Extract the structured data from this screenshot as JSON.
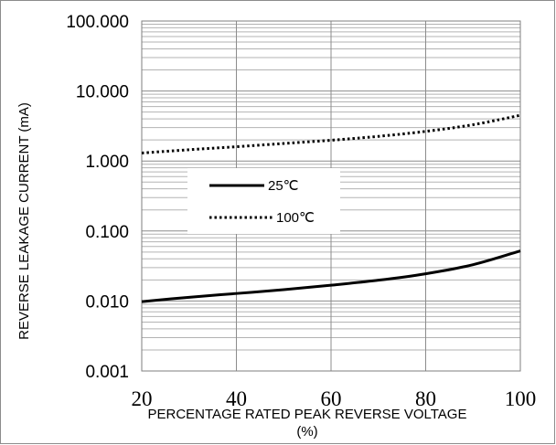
{
  "chart_data": {
    "type": "line",
    "title": "",
    "xlabel_line1": "PERCENTAGE RATED PEAK REVERSE VOLTAGE",
    "xlabel_line2": "(%)",
    "ylabel": "REVERSE LEAKAGE CURRENT (mA)",
    "xlim": [
      20,
      100
    ],
    "ylim": [
      0.001,
      100
    ],
    "y_scale": "log",
    "grid": true,
    "legend_position": "center-left",
    "x_ticks": [
      "20",
      "40",
      "60",
      "80",
      "100"
    ],
    "y_ticks": [
      "100.000",
      "10.000",
      "1.000",
      "0.100",
      "0.010",
      "0.001"
    ],
    "series": [
      {
        "name": "25℃",
        "style": "solid",
        "color": "#000000",
        "x": [
          20,
          30,
          40,
          50,
          60,
          70,
          80,
          90,
          100
        ],
        "y": [
          0.0098,
          0.0113,
          0.0128,
          0.0145,
          0.0168,
          0.0198,
          0.0245,
          0.033,
          0.052
        ]
      },
      {
        "name": "100℃",
        "style": "dotted",
        "color": "#000000",
        "x": [
          20,
          30,
          40,
          50,
          60,
          70,
          80,
          90,
          100
        ],
        "y": [
          1.3,
          1.45,
          1.6,
          1.78,
          1.98,
          2.25,
          2.65,
          3.3,
          4.5
        ]
      }
    ]
  }
}
